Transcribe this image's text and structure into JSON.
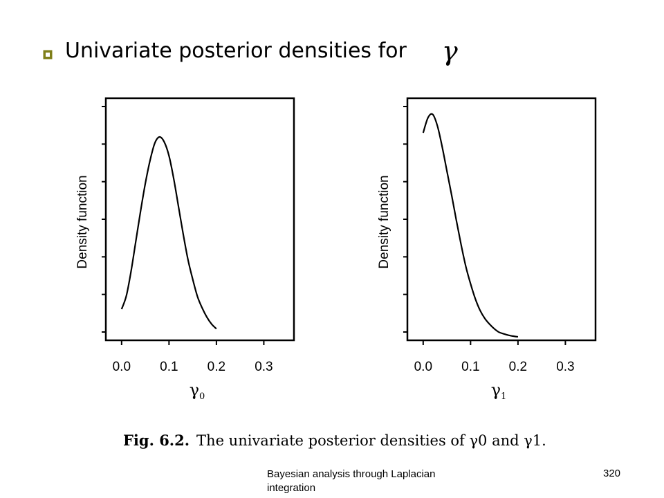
{
  "slide": {
    "title": "Univariate posterior densities for",
    "title_symbol": "γ",
    "bullet_color": "#7f7f1a",
    "caption_label": "Fig. 6.2.",
    "caption_text": "The univariate posterior densities of γ0 and γ1.",
    "footer_text": "Bayesian analysis through Laplacian integration",
    "page_number": "320"
  },
  "chart_data": [
    {
      "type": "line",
      "xlabel": "γ0",
      "ylabel": "Density function",
      "xticks": [
        "0.0",
        "0.1",
        "0.2",
        "0.3"
      ],
      "xlim": [
        -0.0333,
        0.3636
      ],
      "ylim": [
        0,
        1.05
      ],
      "y_tick_count": 7,
      "y_tick_labels_shown": false,
      "series": [
        {
          "x": [
            0.0,
            0.01,
            0.02,
            0.03,
            0.04,
            0.05,
            0.06,
            0.07,
            0.08,
            0.09,
            0.1,
            0.11,
            0.12,
            0.13,
            0.14,
            0.15,
            0.16,
            0.17,
            0.18,
            0.19,
            0.2
          ],
          "y": [
            0.135,
            0.193,
            0.3,
            0.43,
            0.56,
            0.68,
            0.78,
            0.855,
            0.882,
            0.86,
            0.8,
            0.7,
            0.58,
            0.46,
            0.35,
            0.265,
            0.19,
            0.14,
            0.1,
            0.07,
            0.05
          ]
        }
      ]
    },
    {
      "type": "line",
      "xlabel": "γ1",
      "ylabel": "Density function",
      "xticks": [
        "0.0",
        "0.1",
        "0.2",
        "0.3"
      ],
      "xlim": [
        -0.0333,
        0.3636
      ],
      "ylim": [
        0,
        1.05
      ],
      "y_tick_count": 7,
      "y_tick_labels_shown": false,
      "series": [
        {
          "x": [
            0.0,
            0.01,
            0.02,
            0.03,
            0.04,
            0.05,
            0.06,
            0.07,
            0.08,
            0.09,
            0.1,
            0.11,
            0.12,
            0.13,
            0.14,
            0.15,
            0.16,
            0.17,
            0.18,
            0.19,
            0.2
          ],
          "y": [
            0.9,
            0.965,
            0.98,
            0.93,
            0.84,
            0.735,
            0.63,
            0.52,
            0.415,
            0.32,
            0.245,
            0.18,
            0.13,
            0.095,
            0.07,
            0.05,
            0.035,
            0.028,
            0.022,
            0.018,
            0.015
          ]
        }
      ]
    }
  ]
}
